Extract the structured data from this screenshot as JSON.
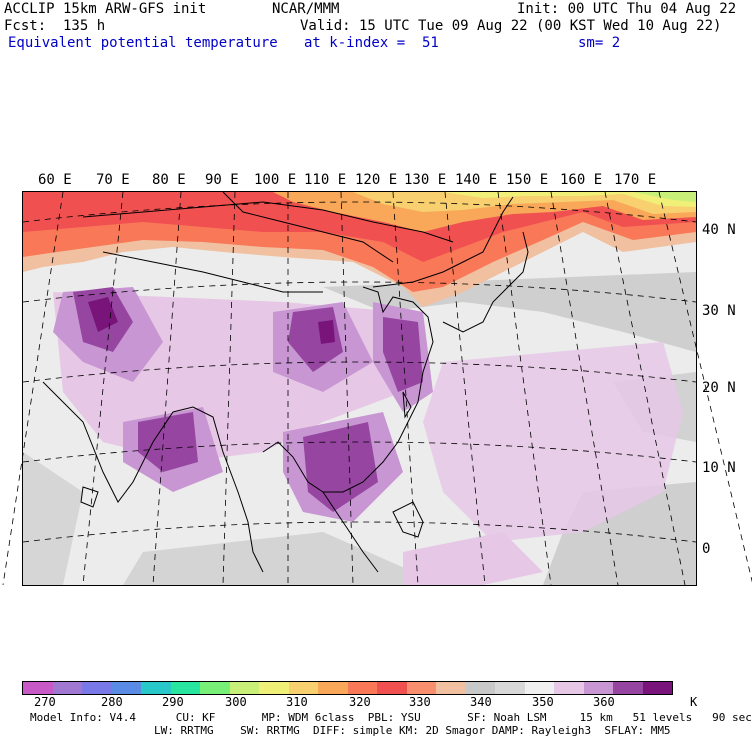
{
  "header": {
    "line1_left": "ACCLIP 15km ARW-GFS init",
    "line1_center": "NCAR/MMM",
    "line1_right": "Init: 00 UTC Thu 04 Aug 22",
    "line2_left": "Fcst:  135 h",
    "line2_right": "Valid: 15 UTC Tue 09 Aug 22 (00 KST Wed 10 Aug 22)",
    "line3_left": "Equivalent potential temperature",
    "line3_center": "at k-index =  51",
    "line3_right": "sm= 2"
  },
  "longitude_labels": [
    "60 E",
    "70 E",
    "80 E",
    "90 E",
    "100 E",
    "110 E",
    "120 E",
    "130 E",
    "140 E",
    "150 E",
    "160 E",
    "170 E"
  ],
  "latitude_labels": [
    "40 N",
    "30 N",
    "20 N",
    "10 N",
    "0"
  ],
  "colorbar": {
    "colors": [
      "#c85ac8",
      "#a078d2",
      "#7878e6",
      "#5a8ce6",
      "#28c8c8",
      "#28e6a0",
      "#78f078",
      "#c8f078",
      "#f0f078",
      "#f8d070",
      "#f8a858",
      "#f87858",
      "#f05050",
      "#f89070",
      "#f0c0a0",
      "#c8c8c8",
      "#d8d8d8",
      "#f0f0f0",
      "#e6c8e6",
      "#c896d2",
      "#9646a0",
      "#78147a"
    ],
    "labels": [
      "270",
      "280",
      "290",
      "300",
      "310",
      "320",
      "330",
      "340",
      "350",
      "360"
    ],
    "unit": "K"
  },
  "model_info": {
    "line1": "Model Info: V4.4      CU: KF       MP: WDM 6class  PBL: YSU       SF: Noah LSM     15 km   51 levels   90 sec",
    "line2": "LW: RRTMG    SW: RRTMG  DIFF: simple KM: 2D Smagor DAMP: Rayleigh3  SFLAY: MM5"
  }
}
